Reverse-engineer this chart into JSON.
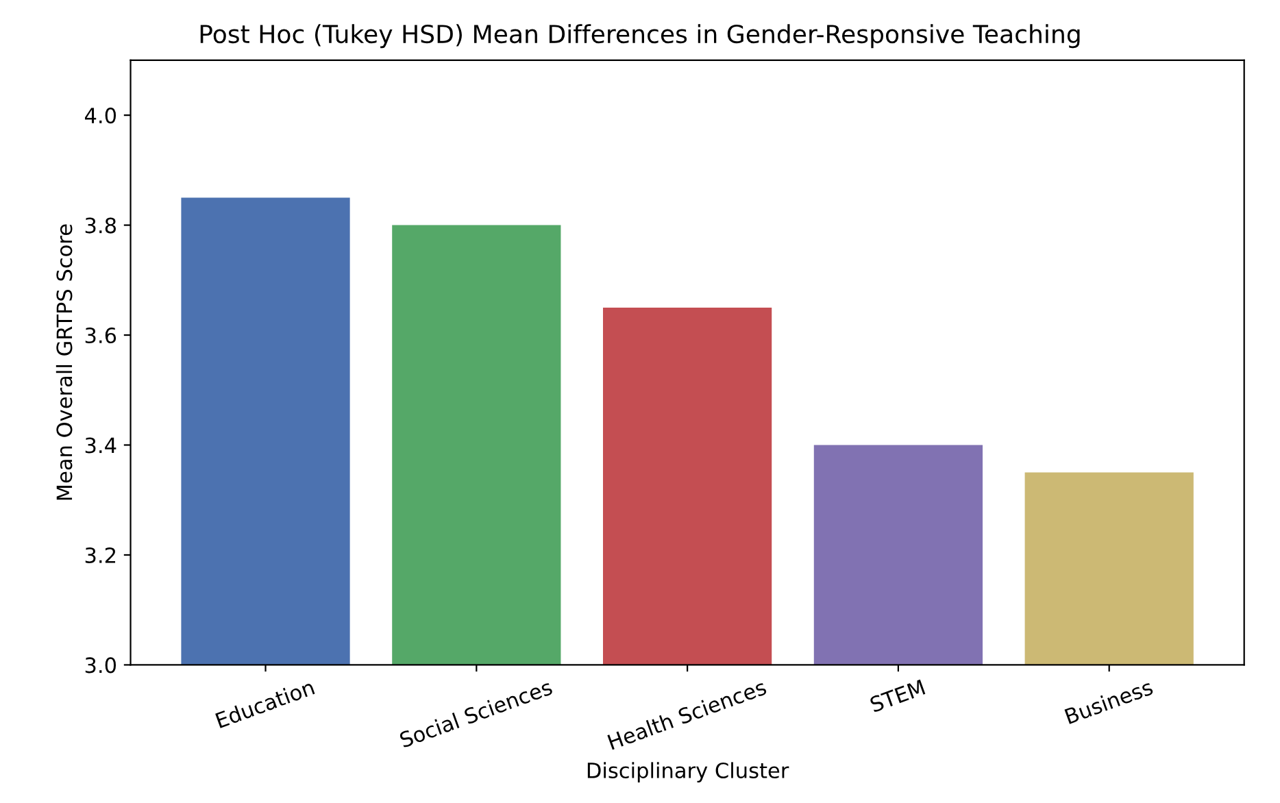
{
  "chart_data": {
    "type": "bar",
    "title": "Post Hoc (Tukey HSD) Mean Differences in Gender-Responsive Teaching",
    "xlabel": "Disciplinary Cluster",
    "ylabel": "Mean Overall GRTPS Score",
    "categories": [
      "Education",
      "Social Sciences",
      "Health Sciences",
      "STEM",
      "Business"
    ],
    "values": [
      3.85,
      3.8,
      3.65,
      3.4,
      3.35
    ],
    "colors": [
      "#4c72b0",
      "#55a868",
      "#c44e52",
      "#8172b2",
      "#ccb974"
    ],
    "ylim": [
      3.0,
      4.1
    ],
    "yticks": [
      {
        "value": 3,
        "label": "3.0"
      },
      3.2,
      3.4,
      3.6,
      3.8,
      {
        "value": 4,
        "label": "4.0"
      }
    ],
    "grid": false,
    "legend": false
  }
}
